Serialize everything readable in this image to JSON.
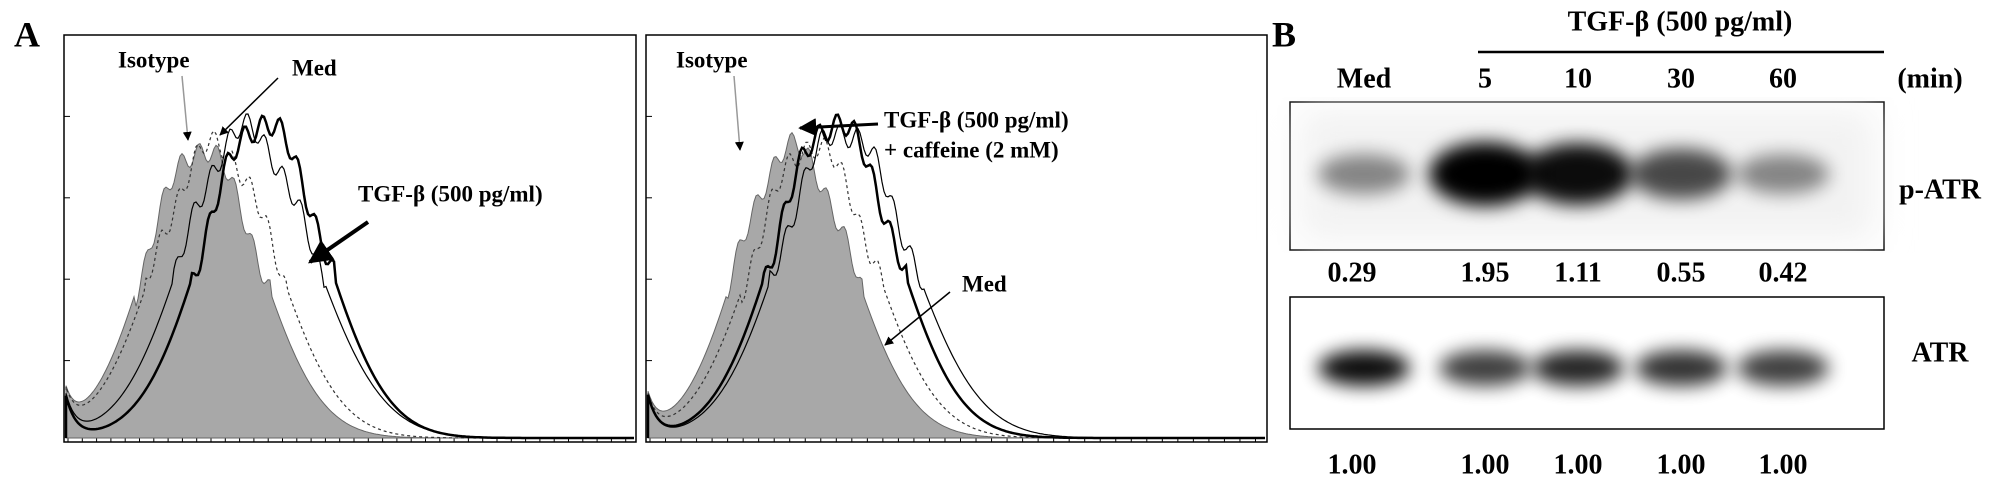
{
  "panel_a": {
    "label": "A",
    "plot_1": {
      "isotype": "Isotype",
      "med": "Med",
      "tgf": "TGF-β (500 pg/ml)"
    },
    "plot_2": {
      "isotype": "Isotype",
      "tgf": "TGF-β (500 pg/ml)",
      "caffeine": "+ caffeine (2 mM)",
      "med": "Med"
    }
  },
  "panel_b": {
    "label": "B",
    "treatment": "TGF-β (500 pg/ml)",
    "columns": [
      "Med",
      "5",
      "10",
      "30",
      "60"
    ],
    "unit": "(min)",
    "blots": [
      {
        "name": "p-ATR",
        "ratios": [
          "0.29",
          "1.95",
          "1.11",
          "0.55",
          "0.42"
        ]
      },
      {
        "name": "ATR",
        "ratios": [
          "1.00",
          "1.00",
          "1.00",
          "1.00",
          "1.00"
        ]
      }
    ]
  }
}
